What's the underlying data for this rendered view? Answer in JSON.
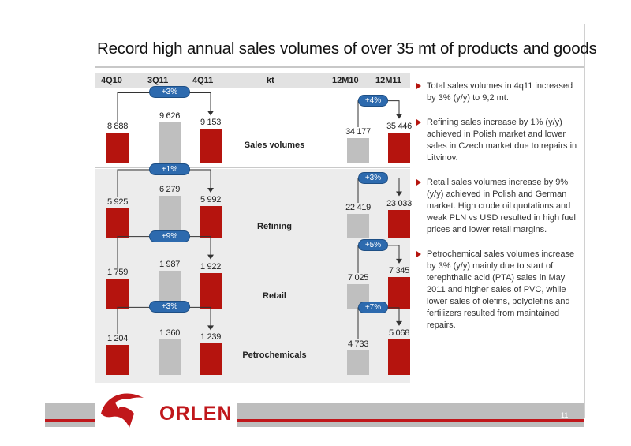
{
  "title": "Record high annual sales volumes of over 35 mt of products and goods",
  "header": {
    "col_4q10": "4Q10",
    "col_3q11": "3Q11",
    "col_4q11": "4Q11",
    "unit": "kt",
    "col_12m10": "12M10",
    "col_12m11": "12M11"
  },
  "colors": {
    "red": "#b5140e",
    "gray": "#bfbfbf",
    "pill": "#2d6aae"
  },
  "chart_data": [
    {
      "type": "bar",
      "title": "Sales volumes",
      "quarterly": {
        "categories": [
          "4Q10",
          "3Q11",
          "4Q11"
        ],
        "values": [
          8888,
          9626,
          9153
        ],
        "labels": [
          "8 888",
          "9 626",
          "9 153"
        ],
        "change": "+3%"
      },
      "annual": {
        "categories": [
          "12M10",
          "12M11"
        ],
        "values": [
          34177,
          35446
        ],
        "labels": [
          "34 177",
          "35 446"
        ],
        "change": "+4%"
      }
    },
    {
      "type": "bar",
      "title": "Refining",
      "quarterly": {
        "categories": [
          "4Q10",
          "3Q11",
          "4Q11"
        ],
        "values": [
          5925,
          6279,
          5992
        ],
        "labels": [
          "5 925",
          "6 279",
          "5 992"
        ],
        "change": "+1%"
      },
      "annual": {
        "categories": [
          "12M10",
          "12M11"
        ],
        "values": [
          22419,
          23033
        ],
        "labels": [
          "22 419",
          "23 033"
        ],
        "change": "+3%"
      }
    },
    {
      "type": "bar",
      "title": "Retail",
      "quarterly": {
        "categories": [
          "4Q10",
          "3Q11",
          "4Q11"
        ],
        "values": [
          1759,
          1987,
          1922
        ],
        "labels": [
          "1 759",
          "1 987",
          "1 922"
        ],
        "change": "+9%"
      },
      "annual": {
        "categories": [
          "12M10",
          "12M11"
        ],
        "values": [
          7025,
          7345
        ],
        "labels": [
          "7 025",
          "7 345"
        ],
        "change": "+5%"
      }
    },
    {
      "type": "bar",
      "title": "Petrochemicals",
      "quarterly": {
        "categories": [
          "4Q10",
          "3Q11",
          "4Q11"
        ],
        "values": [
          1204,
          1360,
          1239
        ],
        "labels": [
          "1 204",
          "1 360",
          "1 239"
        ],
        "change": "+3%"
      },
      "annual": {
        "categories": [
          "12M10",
          "12M11"
        ],
        "values": [
          4733,
          5068
        ],
        "labels": [
          "4 733",
          "5 068"
        ],
        "change": "+7%"
      }
    }
  ],
  "bullets": [
    "Total sales volumes in 4q11 increased by 3% (y/y) to 9,2 mt.",
    "Refining sales increase by 1% (y/y) achieved in Polish market and lower sales in Czech market due to repairs in Litvinov.",
    "Retail sales volumes increase by 9% (y/y) achieved in Polish and German market. High crude oil quotations and weak PLN vs USD resulted in high fuel prices and lower retail margins.",
    "Petrochemical sales volumes increase by 3% (y/y) mainly due to start of terephthalic acid (PTA) sales in May 2011 and higher sales of PVC, while lower sales of olefins, polyolefins and fertilizers resulted from maintained repairs."
  ],
  "footer": {
    "logo_text": "ORLEN",
    "logo_icon": "orlen-eagle-icon",
    "page_number": "11"
  }
}
